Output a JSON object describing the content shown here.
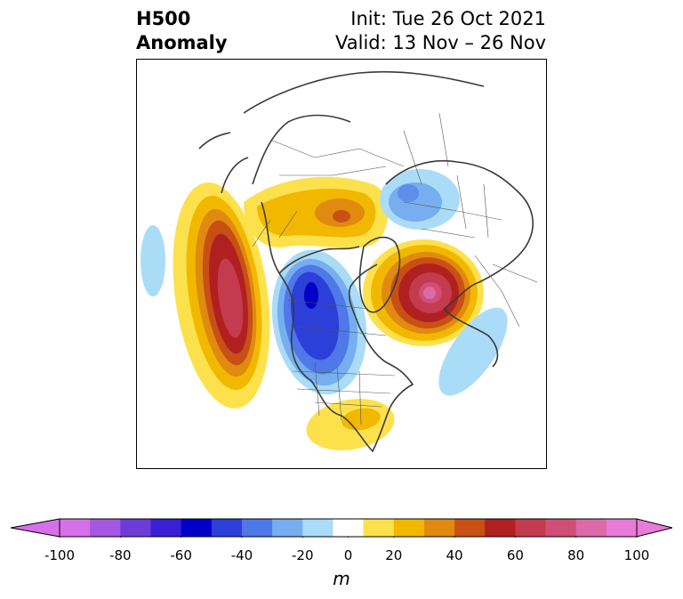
{
  "title": {
    "line1": "H500",
    "line2": "Anomaly"
  },
  "init": "Init: Tue 26 Oct 2021",
  "valid": "Valid: 13 Nov – 26 Nov",
  "colorbar": {
    "unit": "m",
    "ticks": [
      "-100",
      "-80",
      "-60",
      "-40",
      "-20",
      "0",
      "20",
      "40",
      "60",
      "80",
      "100"
    ],
    "bins": [
      -100,
      -90,
      -80,
      -70,
      -60,
      -50,
      -40,
      -30,
      -20,
      -10,
      10,
      20,
      30,
      40,
      50,
      60,
      70,
      80,
      90,
      100
    ],
    "colors": [
      "#d670e8",
      "#a457e0",
      "#6e3bd8",
      "#3b1fd4",
      "#0000c8",
      "#2c3fd8",
      "#4f78e8",
      "#76aef0",
      "#aadcf8",
      "#ffffff",
      "#fde14c",
      "#f2b800",
      "#e08a10",
      "#c85014",
      "#b02020",
      "#c43a4e",
      "#d04e78",
      "#dc6aa6",
      "#e87ad8"
    ],
    "extend_low_color": "#d670e8",
    "extend_high_color": "#e87ad8"
  },
  "map": {
    "projection": "north-polar-stereographic",
    "anomalies": [
      {
        "region": "northeast-pacific-ridge",
        "peak_m": 70,
        "sign": "positive"
      },
      {
        "region": "canada-hudson-bay-trough",
        "peak_m": -50,
        "sign": "negative"
      },
      {
        "region": "scandinavia-barents-ridge",
        "peak_m": 80,
        "sign": "positive"
      },
      {
        "region": "east-asia-ridge",
        "peak_m": 30,
        "sign": "positive"
      },
      {
        "region": "siberia-trough",
        "peak_m": -30,
        "sign": "negative"
      },
      {
        "region": "southeast-us-ridge",
        "peak_m": 20,
        "sign": "positive"
      },
      {
        "region": "north-atlantic-trough",
        "peak_m": -20,
        "sign": "negative"
      },
      {
        "region": "western-pacific-trough",
        "peak_m": -20,
        "sign": "negative"
      }
    ]
  }
}
